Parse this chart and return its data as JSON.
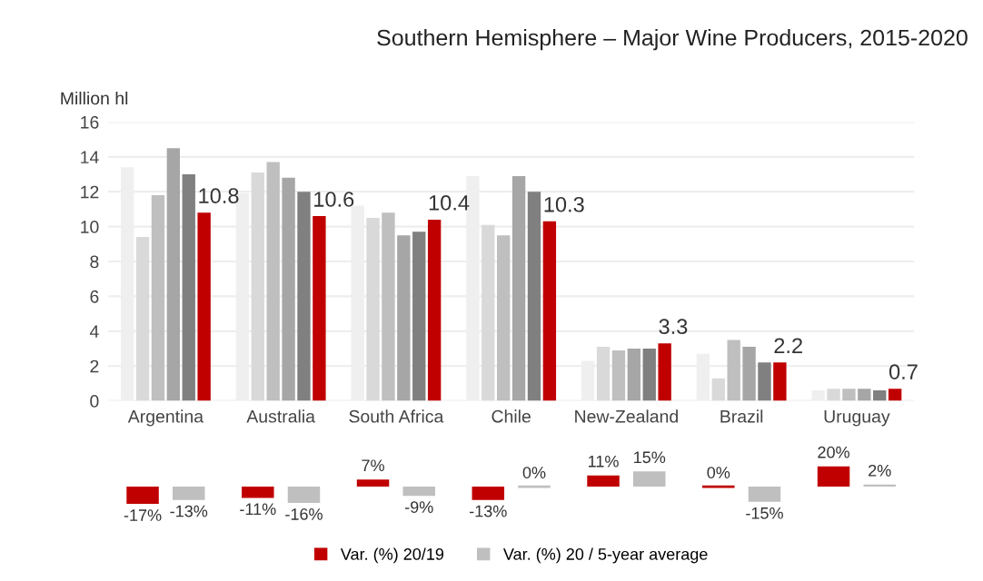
{
  "chart_data": [
    {
      "type": "bar",
      "title": "Southern Hemisphere – Major Wine Producers, 2015-2020",
      "ylabel": "Million hl",
      "categories": [
        "Argentina",
        "Australia",
        "South Africa",
        "Chile",
        "New-Zealand",
        "Brazil",
        "Uruguay"
      ],
      "series": [
        {
          "color": "#efefef",
          "values": [
            13.4,
            11.9,
            11.2,
            12.9,
            2.3,
            2.7,
            0.6
          ]
        },
        {
          "color": "#d9d9d9",
          "values": [
            9.4,
            13.1,
            10.5,
            10.1,
            3.1,
            1.3,
            0.7
          ]
        },
        {
          "color": "#bfbfbf",
          "values": [
            11.8,
            13.7,
            10.8,
            9.5,
            2.9,
            3.5,
            0.7
          ]
        },
        {
          "color": "#a6a6a6",
          "values": [
            14.5,
            12.8,
            9.5,
            12.9,
            3.0,
            3.1,
            0.7
          ]
        },
        {
          "color": "#808080",
          "values": [
            13.0,
            12.0,
            9.7,
            12.0,
            3.0,
            2.2,
            0.6
          ]
        },
        {
          "color": "#c00000",
          "values": [
            10.8,
            10.6,
            10.4,
            10.3,
            3.3,
            2.2,
            0.7
          ],
          "value_labels": [
            "10.8",
            "10.6",
            "10.4",
            "10.3",
            "3.3",
            "2.2",
            "0.7"
          ]
        }
      ],
      "ylim": [
        0,
        16
      ],
      "yticks": [
        0,
        2,
        4,
        6,
        8,
        10,
        12,
        14,
        16
      ],
      "grid": "y",
      "legend": false
    },
    {
      "type": "bar",
      "categories": [
        null,
        null,
        null,
        null,
        null,
        null,
        null
      ],
      "series": [
        {
          "name": "Var. (%) 20/19",
          "color": "#c00000",
          "values": [
            -17,
            -11,
            7,
            -13,
            11,
            0,
            20
          ],
          "value_labels": [
            "-17%",
            "-11%",
            "7%",
            "-13%",
            "11%",
            "0%",
            "20%"
          ]
        },
        {
          "name": "Var. (%) 20 / 5-year average",
          "color": "#bfbfbf",
          "values": [
            -13,
            -16,
            -9,
            0,
            15,
            -15,
            2
          ],
          "value_labels": [
            "-13%",
            "-16%",
            "-9%",
            "0%",
            "15%",
            "-15%",
            "2%"
          ]
        }
      ],
      "legend": "bottom",
      "tick_labels": false
    }
  ]
}
